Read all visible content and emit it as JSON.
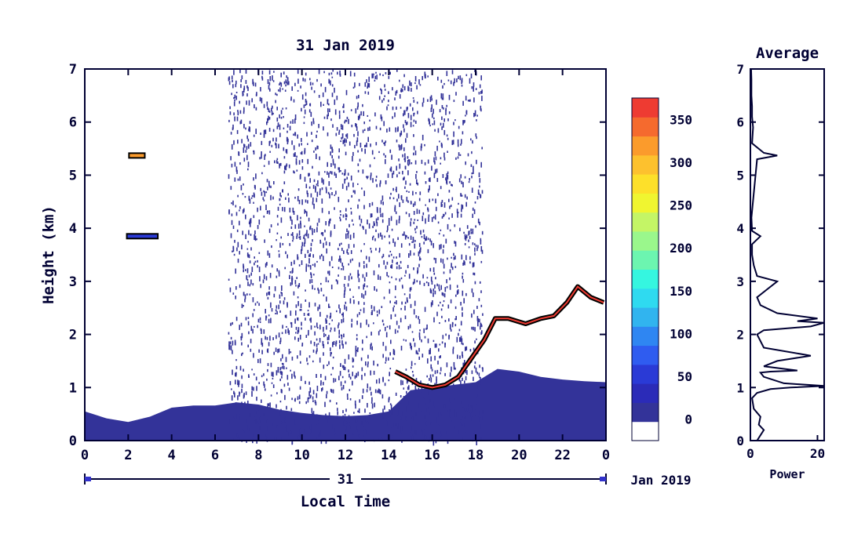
{
  "chart_data": [
    {
      "type": "heatmap",
      "title": "31 Jan 2019",
      "xlabel": "Local Time",
      "ylabel": "Height (km)",
      "xlim": [
        0,
        24
      ],
      "ylim": [
        0,
        7
      ],
      "x_ticks": [
        "0",
        "2",
        "4",
        "6",
        "8",
        "10",
        "12",
        "14",
        "16",
        "18",
        "20",
        "22",
        "0"
      ],
      "y_ticks": [
        "0",
        "1",
        "2",
        "3",
        "4",
        "5",
        "6",
        "7"
      ],
      "date_axis": {
        "day": "31",
        "month_label": "Jan 2019"
      },
      "colorbar": {
        "ticks": [
          "0",
          "50",
          "100",
          "150",
          "200",
          "250",
          "300",
          "350"
        ],
        "range": [
          -25,
          375
        ],
        "colors": [
          "#ffffff",
          "#333399",
          "#2b2bb8",
          "#2a3ad6",
          "#2f5cf0",
          "#2f86f2",
          "#31b4ef",
          "#2fdaf0",
          "#35f6e0",
          "#6cf5b0",
          "#9af78c",
          "#c4f566",
          "#f0f530",
          "#fde02a",
          "#fdc12e",
          "#fb9b2c",
          "#f56a2e",
          "#ee3b32"
        ]
      },
      "layers": [
        {
          "desc": "surface layer",
          "value": 5,
          "x_start": 0,
          "x_end": 24,
          "top_km": [
            0.55,
            0.42,
            0.35,
            0.45,
            0.62,
            0.66,
            0.66,
            0.72,
            0.68,
            0.58,
            0.52,
            0.48,
            0.46,
            0.48,
            0.55,
            0.95,
            1.0,
            1.05,
            1.1,
            1.35,
            1.3,
            1.2,
            1.15,
            1.12,
            1.1
          ]
        },
        {
          "desc": "daytime clutter",
          "value": 10,
          "x_start": 6.6,
          "x_end": 18.3,
          "height_km": [
            0,
            7
          ]
        },
        {
          "desc": "boundary layer top",
          "value": 360,
          "points": [
            [
              14.3,
              1.3
            ],
            [
              14.8,
              1.2
            ],
            [
              15.4,
              1.05
            ],
            [
              16.0,
              1.0
            ],
            [
              16.6,
              1.05
            ],
            [
              17.2,
              1.2
            ],
            [
              17.8,
              1.55
            ],
            [
              18.4,
              1.9
            ],
            [
              18.9,
              2.3
            ],
            [
              19.5,
              2.3
            ],
            [
              20.3,
              2.2
            ],
            [
              21.0,
              2.3
            ],
            [
              21.6,
              2.35
            ],
            [
              22.2,
              2.6
            ],
            [
              22.7,
              2.9
            ],
            [
              23.3,
              2.7
            ],
            [
              23.9,
              2.6
            ]
          ]
        },
        {
          "desc": "elevated echo",
          "value": 330,
          "x_start": 2.0,
          "x_end": 2.8,
          "height_km": 5.37
        },
        {
          "desc": "elevated echo",
          "value": 60,
          "x_start": 1.9,
          "x_end": 3.4,
          "height_km": 3.85
        }
      ]
    },
    {
      "type": "line",
      "title": "Average",
      "xlabel": "Power",
      "ylabel": "",
      "xlim": [
        0,
        22
      ],
      "ylim": [
        0,
        7
      ],
      "x_ticks": [
        "0",
        "20"
      ],
      "y_ticks": [
        "0",
        "1",
        "2",
        "3",
        "4",
        "5",
        "6",
        "7"
      ],
      "x": [
        2,
        3,
        4,
        2.5,
        3,
        1,
        0.5,
        2,
        6,
        12,
        22,
        10,
        4,
        3,
        6,
        14,
        4,
        8,
        18,
        4,
        2,
        4,
        18,
        22,
        14,
        20,
        8,
        3,
        2,
        5,
        8,
        2,
        1,
        0.5,
        0.5,
        3,
        0.5,
        0.3,
        2,
        8,
        4,
        0.5,
        0.8,
        0.5,
        0.5,
        0.3,
        0.3,
        0.2
      ],
      "y": [
        0,
        0.1,
        0.2,
        0.3,
        0.45,
        0.6,
        0.8,
        0.9,
        0.97,
        1.0,
        1.03,
        1.08,
        1.2,
        1.28,
        1.3,
        1.32,
        1.4,
        1.5,
        1.6,
        1.75,
        2.0,
        2.08,
        2.15,
        2.22,
        2.25,
        2.3,
        2.4,
        2.55,
        2.7,
        2.85,
        3.0,
        3.1,
        3.3,
        3.5,
        3.7,
        3.85,
        3.95,
        4.2,
        5.3,
        5.37,
        5.42,
        5.6,
        5.9,
        6.1,
        6.3,
        6.5,
        6.8,
        7.0
      ]
    }
  ]
}
